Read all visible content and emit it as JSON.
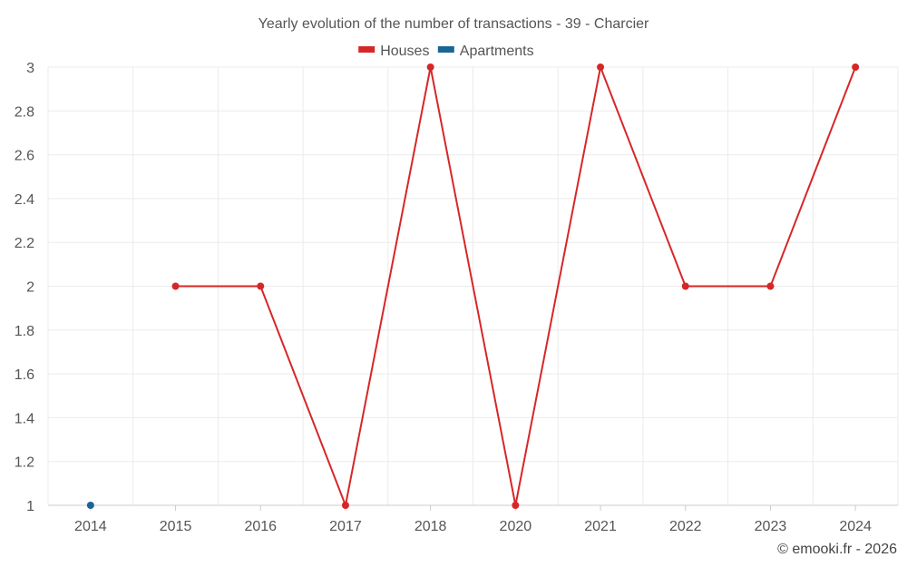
{
  "chart_data": {
    "type": "line",
    "title": "Yearly evolution of the number of transactions - 39 - Charcier",
    "categories": [
      "2014",
      "2015",
      "2016",
      "2017",
      "2018",
      "2020",
      "2021",
      "2022",
      "2023",
      "2024"
    ],
    "series": [
      {
        "name": "Houses",
        "color": "#d62728",
        "values": [
          null,
          2,
          2,
          1,
          3,
          1,
          3,
          2,
          2,
          3
        ]
      },
      {
        "name": "Apartments",
        "color": "#1a6496",
        "values": [
          1,
          null,
          null,
          null,
          null,
          null,
          null,
          null,
          null,
          null
        ]
      }
    ],
    "ylim": [
      1,
      3
    ],
    "yticks": [
      1,
      1.2,
      1.4,
      1.6,
      1.8,
      2,
      2.2,
      2.4,
      2.6,
      2.8,
      3
    ],
    "grid": true,
    "legend": "top-center"
  },
  "credit": "© emooki.fr - 2026"
}
